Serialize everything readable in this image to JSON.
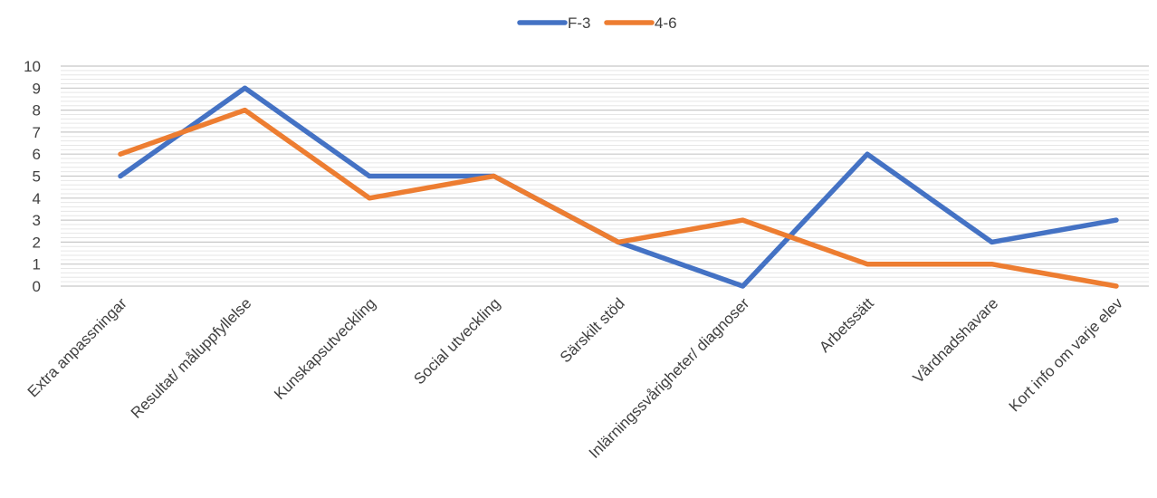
{
  "chart_data": {
    "type": "line",
    "categories": [
      "Extra anpassningar",
      "Resultat/ måluppfyllelse",
      "Kunskapsutveckling",
      "Social utveckling",
      "Särskilt stöd",
      "Inlärningssvårigheter/ diagnoser",
      "Arbetssätt",
      "Vårdnadshavare",
      "Kort info om varje elev"
    ],
    "series": [
      {
        "name": "F-3",
        "color": "#4472C4",
        "values": [
          5,
          9,
          5,
          5,
          2,
          0,
          6,
          2,
          3
        ]
      },
      {
        "name": "4-6",
        "color": "#ED7D31",
        "values": [
          6,
          8,
          4,
          5,
          2,
          3,
          1,
          1,
          0
        ]
      }
    ],
    "ylim": [
      0,
      10
    ],
    "yticks": [
      0,
      1,
      2,
      3,
      4,
      5,
      6,
      7,
      8,
      9,
      10
    ],
    "grid": true,
    "legend_position": "top-center",
    "title": "",
    "xlabel": "",
    "ylabel": ""
  }
}
